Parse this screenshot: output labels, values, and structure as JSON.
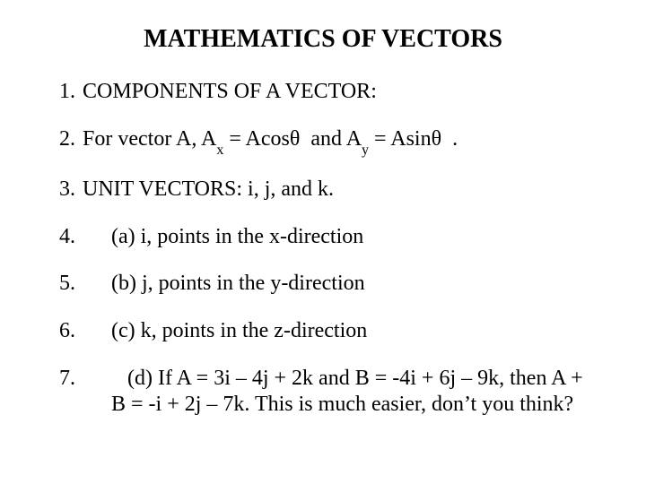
{
  "title": "MATHEMATICS OF VECTORS",
  "items": [
    {
      "num": "1.",
      "text": "COMPONENTS OF A VECTOR:",
      "indent": false,
      "html": false
    },
    {
      "num": "2.",
      "text": " For vector A, A<span class=\"sub\">x</span> = Acosθ&nbsp;&nbsp;and A<span class=\"sub\">y</span> = Asinθ&nbsp;&nbsp;.",
      "indent": false,
      "html": true
    },
    {
      "num": "3.",
      "text": "UNIT VECTORS: i, j, and k.",
      "indent": false,
      "html": false
    },
    {
      "num": "4.",
      "text": "(a) i, points in the x-direction",
      "indent": true,
      "html": false
    },
    {
      "num": "5.",
      "text": "(b) j, points in the y-direction",
      "indent": true,
      "html": false
    },
    {
      "num": "6.",
      "text": "(c) k, points in the z-direction",
      "indent": true,
      "html": false
    },
    {
      "num": "7.",
      "text": "&nbsp;&nbsp;&nbsp;(d) If A = 3i – 4j + 2k and B = -4i + 6j – 9k, then A + B = -i + 2j – 7k.  This is much easier, don’t you think?",
      "indent": true,
      "html": true
    }
  ],
  "colors": {
    "background": "#ffffff",
    "text": "#000000"
  },
  "typography": {
    "title_fontsize": 28,
    "body_fontsize": 24,
    "font_family": "Times New Roman"
  }
}
